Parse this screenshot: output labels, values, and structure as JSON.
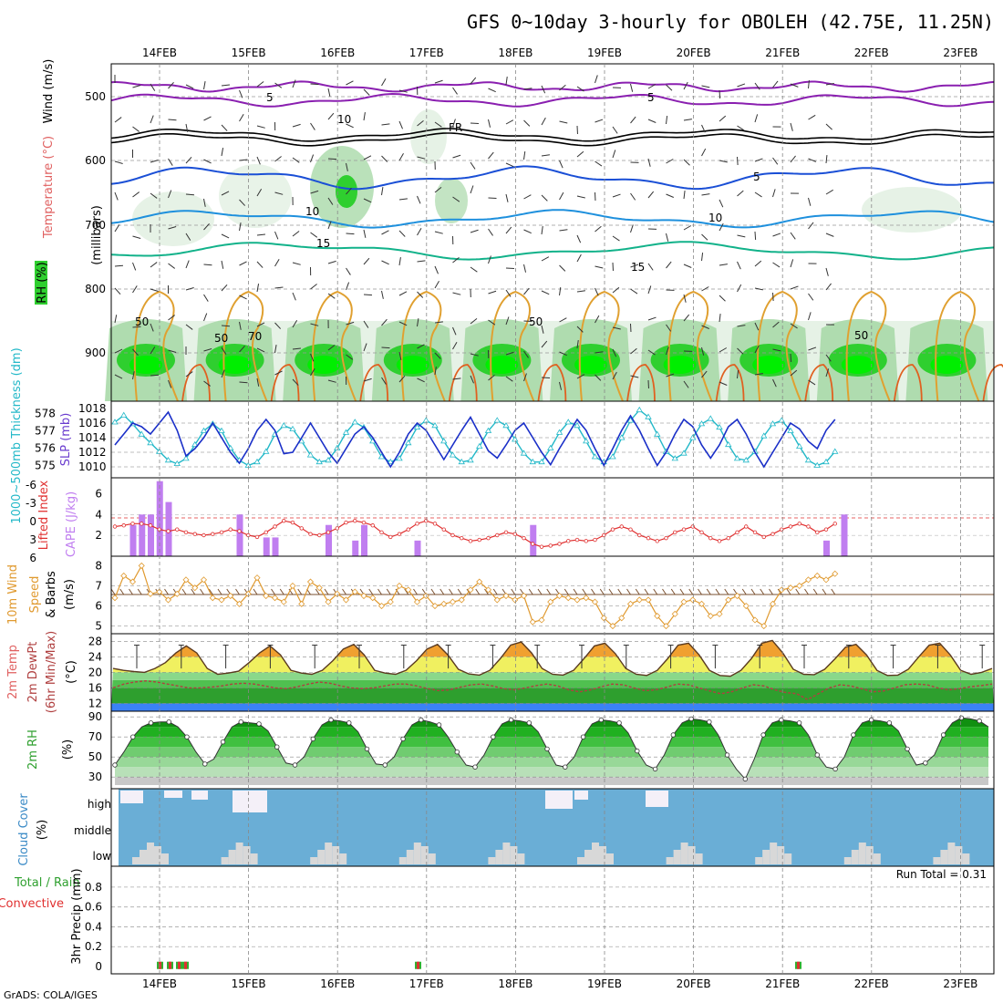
{
  "title": "GFS 0~10day 3-hourly for OBOLEH (42.75E, 11.25N)",
  "footer": "GrADS: COLA/IGES",
  "dates": [
    "14FEB",
    "15FEB",
    "16FEB",
    "17FEB",
    "18FEB",
    "19FEB",
    "20FEB",
    "21FEB",
    "22FEB",
    "23FEB"
  ],
  "colors": {
    "wind5": "#8a1fb0",
    "fr": "#000000",
    "t5": "#1a4fd6",
    "t10": "#1e90dd",
    "t15": "#12b28a",
    "rh_light": "#e6f2e6",
    "rh_mid": "#a9d9a9",
    "rh_dark": "#2fcf2f",
    "rh_bright": "#00ee00",
    "slp": "#1a2fc8",
    "thk": "#22b8c8",
    "li": "#e03030",
    "cape": "#c07ef0",
    "wind10": "#e09a30",
    "barb": "#7a5030",
    "temp": "#f0a030",
    "dew": "#b04040",
    "cloud_bg": "#6aaed6",
    "cloud_fg": "#d8d8d8",
    "cloud_hi": "#f4f0f8",
    "rain": "#e03030",
    "total": "#30b030"
  },
  "panels": {
    "upper": {
      "ylabel_main": "(millibars)",
      "ylabel_wind": "Wind (m/s)",
      "ylabel_temp": "Temperature (°C)",
      "ylabel_rh": "RH (%)",
      "ticks": [
        "500",
        "600",
        "700",
        "800",
        "900"
      ],
      "labels": [
        {
          "text": "5",
          "kind": "wind"
        },
        {
          "text": "5",
          "kind": "wind"
        },
        {
          "text": "FR",
          "kind": "fr"
        },
        {
          "text": "5",
          "kind": "t5"
        },
        {
          "text": "10",
          "kind": "t10"
        },
        {
          "text": "10",
          "kind": "t10"
        },
        {
          "text": "15",
          "kind": "t15"
        },
        {
          "text": "15",
          "kind": "t15"
        },
        {
          "text": "50",
          "kind": "rh"
        },
        {
          "text": "50",
          "kind": "rh"
        },
        {
          "text": "50",
          "kind": "rh"
        },
        {
          "text": "50",
          "kind": "rh"
        },
        {
          "text": "70",
          "kind": "rh"
        },
        {
          "text": "10",
          "kind": "rh"
        }
      ]
    },
    "slp": {
      "ylabel_thk": "1000~500mb Thickness (dm)",
      "ylabel_slp": "SLP (mb)",
      "thk_ticks": [
        "578",
        "577",
        "576",
        "575"
      ],
      "slp_ticks": [
        "1018",
        "1016",
        "1014",
        "1012",
        "1010"
      ]
    },
    "li": {
      "ylabel_li": "Lifted Index",
      "ylabel_cape": "CAPE (J/kg)",
      "li_ticks": [
        "-6",
        "-3",
        "0",
        "3",
        "6"
      ],
      "cape_ticks": [
        "6",
        "4",
        "2"
      ]
    },
    "wind": {
      "ylabel1": "10m Wind",
      "ylabel2": "Speed",
      "ylabel3": "& Barbs",
      "ylabel4": "(m/s)",
      "ticks": [
        "8",
        "7",
        "6",
        "5"
      ]
    },
    "temp": {
      "ylabel1": "2m Temp",
      "ylabel2": "2m DewPt",
      "ylabel3": "(6hr Min/Max)",
      "ylabel4": "(°C)",
      "ticks": [
        "28",
        "24",
        "20",
        "16",
        "12"
      ]
    },
    "rh": {
      "ylabel1": "2m RH",
      "ylabel2": "(%)",
      "ticks": [
        "90",
        "70",
        "50",
        "30"
      ]
    },
    "cloud": {
      "ylabel1": "Cloud Cover",
      "ylabel2": "(%)",
      "levels": [
        "high",
        "middle",
        "low"
      ]
    },
    "precip": {
      "ylabel1": "Total / Rain",
      "ylabel2": "Convective",
      "ylabel3": "3hr Precip (mm)",
      "ticks": [
        "0.8",
        "0.6",
        "0.4",
        "0.2",
        "0"
      ],
      "run_total": "Run Total = 0.31"
    }
  },
  "chart_data": [
    {
      "type": "line",
      "name": "sea-level-pressure",
      "ylabel": "SLP (mb)",
      "ylim": [
        1009,
        1018.5
      ],
      "series_name": "SLP",
      "values": [
        1013,
        1014.5,
        1016,
        1015.5,
        1014.5,
        1016,
        1017.5,
        1015,
        1011.5,
        1012.5,
        1014,
        1016,
        1014,
        1012,
        1010.5,
        1012.5,
        1015,
        1016.5,
        1015,
        1011.8,
        1012,
        1014,
        1016,
        1014,
        1012,
        1010.5,
        1012.5,
        1014.5,
        1015.5,
        1014,
        1012,
        1010,
        1012,
        1014.5,
        1016,
        1015,
        1013,
        1011,
        1013,
        1015,
        1016.8,
        1014.5,
        1012.2,
        1011.2,
        1013,
        1015,
        1016,
        1014,
        1012,
        1010.3,
        1012.5,
        1014.5,
        1016.5,
        1015,
        1012.5,
        1010.2,
        1012.5,
        1015,
        1017,
        1015,
        1012.5,
        1010.2,
        1012,
        1014.5,
        1016.5,
        1015.5,
        1013,
        1011.2,
        1013,
        1015.5,
        1016.5,
        1014.5,
        1012,
        1010,
        1012,
        1014,
        1016,
        1015.2,
        1013.5,
        1012.5,
        1015,
        1016.5
      ]
    },
    {
      "type": "line",
      "name": "thickness-1000-500",
      "ylabel": "1000~500mb Thickness (dm)",
      "ylim": [
        574.5,
        578.5
      ],
      "series_name": "Thickness",
      "values": [
        577.5,
        577.9,
        577.4,
        576.8,
        576.3,
        575.8,
        575.3,
        575.1,
        575.4,
        576.2,
        577.0,
        577.4,
        577.0,
        576.0,
        575.3,
        575.0,
        575.2,
        575.8,
        576.8,
        577.3,
        577.1,
        576.4,
        575.6,
        575.2,
        575.3,
        576.0,
        576.9,
        577.5,
        577.2,
        576.4,
        575.5,
        575.2,
        575.4,
        576.3,
        577.2,
        577.6,
        577.3,
        576.4,
        575.6,
        575.2,
        575.3,
        576.1,
        577.0,
        577.6,
        577.3,
        576.5,
        575.7,
        575.2,
        575.2,
        576.0,
        576.9,
        577.5,
        577.3,
        576.4,
        575.5,
        575.2,
        575.5,
        576.6,
        577.6,
        578.2,
        577.8,
        576.8,
        575.8,
        575.4,
        575.7,
        576.6,
        577.4,
        577.7,
        577.2,
        576.2,
        575.4,
        575.3,
        575.8,
        576.7,
        577.4,
        577.6,
        577.0,
        576.1,
        575.3,
        575.0,
        575.2,
        575.8
      ]
    },
    {
      "type": "bar",
      "name": "cape",
      "ylabel": "CAPE (J/kg)",
      "ylim": [
        0,
        7
      ],
      "points": [
        [
          2,
          3
        ],
        [
          3,
          4
        ],
        [
          4,
          4
        ],
        [
          5,
          7.2
        ],
        [
          6,
          5.2
        ],
        [
          14,
          4
        ],
        [
          17,
          1.8
        ],
        [
          18,
          1.8
        ],
        [
          24,
          3
        ],
        [
          27,
          1.5
        ],
        [
          28,
          3
        ],
        [
          34,
          1.5
        ],
        [
          47,
          3
        ],
        [
          80,
          1.5
        ],
        [
          82,
          4
        ]
      ]
    },
    {
      "type": "line",
      "name": "lifted-index",
      "ylabel": "Lifted Index",
      "ylim": [
        -6,
        6
      ],
      "values": [
        1.5,
        1.3,
        1.0,
        1.0,
        1.3,
        2.0,
        2.3,
        2.0,
        2.5,
        2.8,
        3.0,
        2.8,
        2.5,
        2.0,
        2.3,
        3.0,
        3.3,
        2.5,
        1.5,
        0.5,
        0.8,
        1.8,
        2.8,
        3.0,
        2.5,
        1.8,
        0.8,
        0.5,
        0.8,
        1.3,
        2.5,
        3.3,
        2.8,
        2.0,
        1.0,
        0.5,
        1.0,
        2.0,
        3.0,
        3.5,
        4.0,
        3.8,
        3.5,
        3.0,
        2.5,
        2.8,
        3.5,
        4.5,
        5.0,
        4.8,
        4.5,
        4.0,
        3.8,
        4.0,
        3.8,
        3.0,
        2.0,
        1.5,
        2.0,
        3.0,
        3.5,
        4.0,
        3.5,
        2.5,
        2.0,
        1.5,
        2.5,
        3.5,
        4.0,
        3.5,
        2.5,
        1.5,
        2.5,
        3.3,
        2.8,
        2.0,
        1.5,
        1.0,
        1.5,
        2.5,
        2.0,
        1.0
      ]
    },
    {
      "type": "line",
      "name": "10m-wind-speed",
      "ylabel": "(m/s)",
      "ylim": [
        4.8,
        8.2
      ],
      "values": [
        6.4,
        7.5,
        7.2,
        8.0,
        6.6,
        6.7,
        6.3,
        6.6,
        7.3,
        6.9,
        7.3,
        6.4,
        6.3,
        6.5,
        6.1,
        6.6,
        7.4,
        6.5,
        6.4,
        6.2,
        7.0,
        6.1,
        7.2,
        6.9,
        6.2,
        6.6,
        6.3,
        6.7,
        6.5,
        6.4,
        6.0,
        6.2,
        7.0,
        6.8,
        6.2,
        6.5,
        6.0,
        6.1,
        6.2,
        6.3,
        6.8,
        7.2,
        6.8,
        6.3,
        6.5,
        6.3,
        6.5,
        5.2,
        5.3,
        6.2,
        6.5,
        6.4,
        6.3,
        6.4,
        6.2,
        5.4,
        5.0,
        5.4,
        6.1,
        6.3,
        6.3,
        5.5,
        5.0,
        5.6,
        6.2,
        6.3,
        6.1,
        5.5,
        5.6,
        6.3,
        6.5,
        6.0,
        5.3,
        5.0,
        6.1,
        6.8,
        6.9,
        7.0,
        7.3,
        7.5,
        7.3,
        7.6
      ]
    },
    {
      "type": "area",
      "name": "2m-temperature",
      "ylabel": "(°C)",
      "ylim": [
        10,
        29
      ],
      "values": [
        21,
        20.5,
        20.2,
        20,
        21,
        22.5,
        25,
        26.8,
        25,
        21,
        19.5,
        19.8,
        20.3,
        22.5,
        25,
        26.8,
        24.5,
        20.5,
        19.8,
        19.5,
        20.5,
        23,
        26,
        27.2,
        24.5,
        20.5,
        19.8,
        19.5,
        20.5,
        23,
        26,
        27.2,
        24.5,
        20.8,
        19.6,
        19.3,
        20.5,
        23.5,
        27,
        27.8,
        25,
        21,
        19.5,
        19.3,
        20.5,
        23.5,
        26.8,
        27.5,
        24.8,
        21,
        19.5,
        19.2,
        20.5,
        23.5,
        27,
        27.5,
        24.5,
        20.5,
        19.2,
        19.0,
        20.5,
        23.5,
        27.5,
        28.2,
        25,
        20.8,
        19.5,
        19.4,
        20.8,
        23.5,
        26.5,
        27.2,
        24.5,
        20.5,
        19.2,
        19.3,
        20.8,
        24,
        27,
        27.5,
        24.5,
        20.5,
        19.5,
        20,
        21
      ]
    },
    {
      "type": "line",
      "name": "2m-dewpoint",
      "ylabel": "(°C)",
      "ylim": [
        10,
        29
      ],
      "values": [
        16,
        17,
        17.5,
        17.8,
        17.5,
        17,
        16.5,
        16,
        16,
        16.2,
        16.5,
        17,
        17.2,
        17,
        16.5,
        16,
        15.8,
        16.3,
        17,
        17.5,
        17.2,
        16.5,
        16,
        15.8,
        16,
        16.5,
        17,
        17,
        16.5,
        15.8,
        15.3,
        15.5,
        16.2,
        16.8,
        17,
        16.5,
        15.8,
        15.5,
        16,
        16.6,
        17,
        16.5,
        15.5,
        15,
        15.5,
        16.3,
        17,
        16.8,
        16,
        15.3,
        15.5,
        16.2,
        17,
        16.8,
        16,
        15.2,
        14.5,
        15,
        16,
        16.8,
        16.5,
        15.5,
        14.8,
        14.5,
        13,
        14.5,
        16,
        16.8,
        16.5,
        15.8,
        15,
        15.2,
        16,
        16.8,
        17,
        16.8,
        16,
        15.5,
        15.8,
        16.3,
        16.6,
        17
      ]
    },
    {
      "type": "area",
      "name": "2m-relative-humidity",
      "ylabel": "(%)",
      "ylim": [
        22,
        92
      ],
      "values": [
        42,
        55,
        70,
        80,
        84,
        85,
        85,
        80,
        70,
        55,
        43,
        48,
        65,
        80,
        85,
        84,
        83,
        76,
        60,
        44,
        42,
        50,
        68,
        82,
        87,
        86,
        84,
        75,
        58,
        43,
        42,
        50,
        68,
        82,
        87,
        85,
        82,
        70,
        55,
        42,
        40,
        52,
        70,
        83,
        87,
        86,
        84,
        75,
        58,
        42,
        40,
        50,
        70,
        83,
        87,
        86,
        84,
        74,
        56,
        42,
        38,
        52,
        72,
        84,
        88,
        87,
        85,
        72,
        52,
        38,
        28,
        48,
        72,
        84,
        87,
        86,
        84,
        72,
        52,
        40,
        38,
        50,
        72,
        84,
        87,
        86,
        84,
        76,
        58,
        42,
        44,
        52,
        72,
        84,
        89,
        88,
        86,
        80
      ]
    }
  ],
  "legend": {
    "wind_ylabel": "Wind (m/s)",
    "temp_ylabel": "Temperature (°C)",
    "rh_ylabel": "RH (%)"
  }
}
